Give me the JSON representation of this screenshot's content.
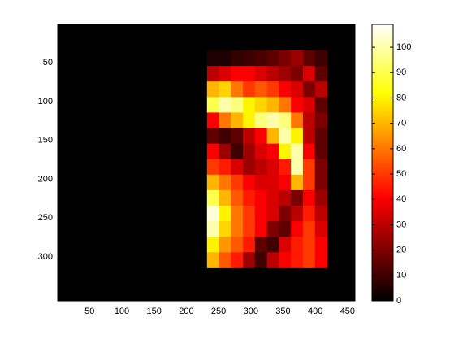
{
  "chart_data": {
    "type": "heatmap",
    "colormap": "hot",
    "y_reversed": true,
    "fill_value": 0,
    "x_edges": [
      232,
      250.6,
      269.2,
      287.8,
      306.4,
      325,
      343.6,
      362.2,
      380.8,
      399.4,
      418
    ],
    "y_edges": [
      34,
      54,
      74,
      94,
      114,
      134,
      154,
      174,
      194,
      214,
      234,
      254,
      274,
      294,
      314
    ],
    "values": [
      [
        5,
        5,
        8,
        10,
        12,
        15,
        20,
        25,
        15,
        10
      ],
      [
        30,
        35,
        40,
        40,
        35,
        30,
        25,
        20,
        35,
        15
      ],
      [
        70,
        75,
        60,
        50,
        55,
        50,
        40,
        35,
        20,
        30
      ],
      [
        90,
        100,
        95,
        80,
        75,
        70,
        60,
        40,
        35,
        15
      ],
      [
        40,
        60,
        70,
        80,
        95,
        100,
        95,
        60,
        30,
        20
      ],
      [
        15,
        10,
        15,
        30,
        40,
        70,
        100,
        80,
        30,
        15
      ],
      [
        40,
        25,
        10,
        25,
        35,
        40,
        80,
        100,
        40,
        15
      ],
      [
        50,
        45,
        35,
        25,
        30,
        35,
        45,
        100,
        50,
        20
      ],
      [
        70,
        60,
        50,
        40,
        35,
        35,
        40,
        70,
        50,
        20
      ],
      [
        90,
        70,
        55,
        45,
        40,
        35,
        30,
        20,
        40,
        25
      ],
      [
        105,
        80,
        60,
        50,
        40,
        35,
        20,
        30,
        45,
        30
      ],
      [
        100,
        75,
        60,
        50,
        40,
        20,
        15,
        40,
        50,
        35
      ],
      [
        80,
        65,
        55,
        45,
        15,
        10,
        35,
        45,
        50,
        40
      ],
      [
        70,
        55,
        45,
        25,
        10,
        30,
        40,
        45,
        50,
        40
      ]
    ],
    "xlim": [
      0.5,
      461.5
    ],
    "xticks": [
      50,
      100,
      150,
      200,
      250,
      300,
      350,
      400,
      450
    ],
    "ylim": [
      0.5,
      356.5
    ],
    "yticks": [
      50,
      100,
      150,
      200,
      250,
      300
    ],
    "clim": [
      0,
      109
    ],
    "cticks": [
      0,
      10,
      20,
      30,
      40,
      50,
      60,
      70,
      80,
      90,
      100
    ]
  }
}
